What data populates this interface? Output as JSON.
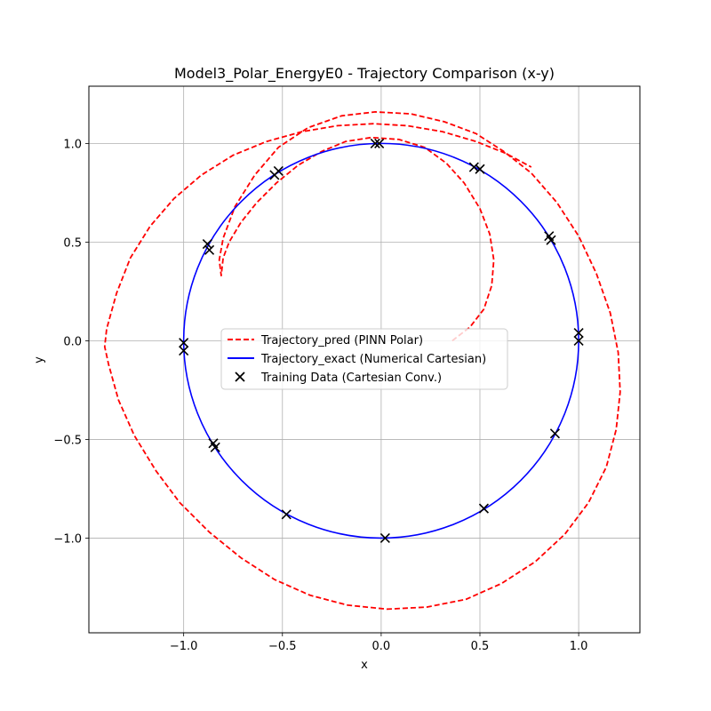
{
  "chart_data": {
    "type": "line",
    "title": "Model3_Polar_EnergyE0 - Trajectory Comparison (x-y)",
    "xlabel": "x",
    "ylabel": "y",
    "xlim": [
      -1.48,
      1.31
    ],
    "ylim": [
      -1.48,
      1.29
    ],
    "xticks": [
      -1.0,
      -0.5,
      0.0,
      0.5,
      1.0
    ],
    "xtick_labels": [
      "−1.0",
      "−0.5",
      "0.0",
      "0.5",
      "1.0"
    ],
    "yticks": [
      -1.0,
      -0.5,
      0.0,
      0.5,
      1.0
    ],
    "ytick_labels": [
      "−1.0",
      "−0.5",
      "0.0",
      "0.5",
      "1.0"
    ],
    "grid": true,
    "legend_position": "center",
    "series": [
      {
        "name": "Trajectory_pred (PINN Polar)",
        "style": "dashed",
        "color": "#ff0000",
        "x": [
          0.36,
          0.45,
          0.52,
          0.56,
          0.57,
          0.55,
          0.5,
          0.42,
          0.33,
          0.22,
          0.09,
          -0.05,
          -0.18,
          -0.3,
          -0.42,
          -0.53,
          -0.63,
          -0.71,
          -0.77,
          -0.8,
          -0.81,
          -0.82,
          -0.8,
          -0.74,
          -0.64,
          -0.52,
          -0.37,
          -0.2,
          -0.03,
          0.15,
          0.32,
          0.48,
          0.62,
          0.76,
          0.89,
          1.0,
          1.09,
          1.16,
          1.2,
          1.21,
          1.19,
          1.14,
          1.05,
          0.93,
          0.78,
          0.61,
          0.43,
          0.23,
          0.03,
          -0.17,
          -0.36,
          -0.54,
          -0.71,
          -0.87,
          -1.02,
          -1.14,
          -1.25,
          -1.33,
          -1.38,
          -1.4,
          -1.39,
          -1.34,
          -1.27,
          -1.17,
          -1.05,
          -0.91,
          -0.75,
          -0.58,
          -0.4,
          -0.22,
          -0.04,
          0.13,
          0.31,
          0.48,
          0.63,
          0.76
        ],
        "y": [
          0.0,
          0.07,
          0.16,
          0.28,
          0.41,
          0.54,
          0.67,
          0.8,
          0.9,
          0.98,
          1.02,
          1.03,
          1.01,
          0.96,
          0.89,
          0.8,
          0.7,
          0.6,
          0.5,
          0.42,
          0.33,
          0.41,
          0.52,
          0.68,
          0.84,
          0.98,
          1.08,
          1.14,
          1.16,
          1.15,
          1.11,
          1.05,
          0.96,
          0.85,
          0.7,
          0.53,
          0.34,
          0.14,
          -0.06,
          -0.26,
          -0.45,
          -0.64,
          -0.82,
          -0.98,
          -1.12,
          -1.23,
          -1.31,
          -1.35,
          -1.36,
          -1.34,
          -1.29,
          -1.21,
          -1.1,
          -0.97,
          -0.82,
          -0.66,
          -0.48,
          -0.3,
          -0.12,
          -0.03,
          0.06,
          0.24,
          0.42,
          0.58,
          0.72,
          0.84,
          0.94,
          1.01,
          1.06,
          1.09,
          1.1,
          1.09,
          1.06,
          1.01,
          0.95,
          0.88
        ]
      },
      {
        "name": "Trajectory_exact (Numerical Cartesian)",
        "style": "solid",
        "color": "#0000ff",
        "circle": {
          "cx": 0.0,
          "cy": 0.0,
          "r": 1.0
        }
      },
      {
        "name": "Training Data (Cartesian Conv.)",
        "style": "marker-x",
        "color": "#000000",
        "x": [
          -0.03,
          -0.01,
          0.47,
          0.5,
          -0.54,
          -0.52,
          -0.88,
          -0.87,
          -1.0,
          -1.0,
          0.85,
          0.86,
          1.0,
          1.0,
          0.88,
          -0.85,
          -0.84,
          -0.48,
          0.02,
          0.52
        ],
        "y": [
          1.0,
          1.0,
          0.88,
          0.87,
          0.84,
          0.86,
          0.49,
          0.46,
          -0.01,
          -0.05,
          0.53,
          0.51,
          0.04,
          0.0,
          -0.47,
          -0.52,
          -0.54,
          -0.88,
          -1.0,
          -0.85
        ]
      }
    ]
  }
}
